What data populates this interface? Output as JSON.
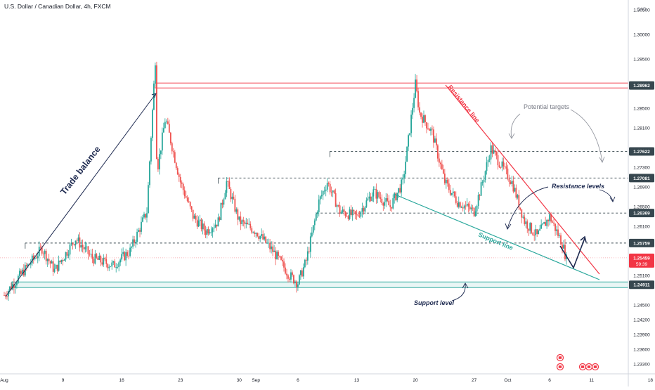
{
  "chart_data": {
    "type": "candlestick",
    "title": "U.S. Dollar / Canadian Dollar, 4h, FXCM",
    "currency": "CAD",
    "ylim": [
      1.231,
      1.307
    ],
    "y_ticks": [
      1.305,
      1.3,
      1.295,
      1.285,
      1.281,
      1.273,
      1.269,
      1.265,
      1.261,
      1.251,
      1.245,
      1.242,
      1.239,
      1.236,
      1.233
    ],
    "y_tick_labels": [
      "1.30500",
      "1.30000",
      "1.29500",
      "1.28500",
      "1.28100",
      "1.27300",
      "1.26900",
      "1.26500",
      "1.26100",
      "1.25100",
      "1.24500",
      "1.24200",
      "1.23900",
      "1.23600",
      "1.23300"
    ],
    "x_tick_labels": [
      {
        "date": "2021-08-02",
        "label": "Aug"
      },
      {
        "date": "2021-08-09",
        "label": "9"
      },
      {
        "date": "2021-08-16",
        "label": "16"
      },
      {
        "date": "2021-08-23",
        "label": "23"
      },
      {
        "date": "2021-08-30",
        "label": "30"
      },
      {
        "date": "2021-09-01",
        "label": "Sep"
      },
      {
        "date": "2021-09-06",
        "label": "6"
      },
      {
        "date": "2021-09-13",
        "label": "13"
      },
      {
        "date": "2021-09-20",
        "label": "20"
      },
      {
        "date": "2021-09-27",
        "label": "27"
      },
      {
        "date": "2021-10-01",
        "label": "Oct"
      },
      {
        "date": "2021-10-06",
        "label": "6"
      },
      {
        "date": "2021-10-11",
        "label": "11"
      },
      {
        "date": "2021-10-18",
        "label": "18"
      }
    ],
    "price_level_labels": [
      {
        "price": 1.28962,
        "label": "1.28962",
        "kind": "resistance"
      },
      {
        "price": 1.27622,
        "label": "1.27622",
        "kind": "resistance"
      },
      {
        "price": 1.27081,
        "label": "1.27081",
        "kind": "resistance"
      },
      {
        "price": 1.26369,
        "label": "1.26369",
        "kind": "resistance"
      },
      {
        "price": 1.25759,
        "label": "1.25759",
        "kind": "resistance"
      },
      {
        "price": 1.24911,
        "label": "1.24911",
        "kind": "support"
      }
    ],
    "current_price": {
      "label": "1.25459",
      "countdown": "59:39",
      "price": 1.25459
    },
    "key_points": [
      {
        "date": "2021-08-02",
        "price": 1.247
      },
      {
        "date": "2021-08-20",
        "price": 1.2948
      },
      {
        "date": "2021-09-06",
        "price": 1.2495
      },
      {
        "date": "2021-09-20",
        "price": 1.2899
      },
      {
        "date": "2021-09-29",
        "price": 1.2768
      },
      {
        "date": "2021-10-08",
        "price": 1.2543
      }
    ],
    "annotations": {
      "trade_balance": "Trade balance",
      "resistance_line": "Resistance line",
      "support_line": "Support line",
      "potential_targets": "Potential targets",
      "resistance_levels": "Resistance levels",
      "support_level": "Support level"
    },
    "colors": {
      "up": "#26a69a",
      "down": "#ef5350",
      "resistance": "#f23645",
      "support": "#26a69a",
      "level_box": "#37474f",
      "drawing": "#1e2a50"
    }
  }
}
